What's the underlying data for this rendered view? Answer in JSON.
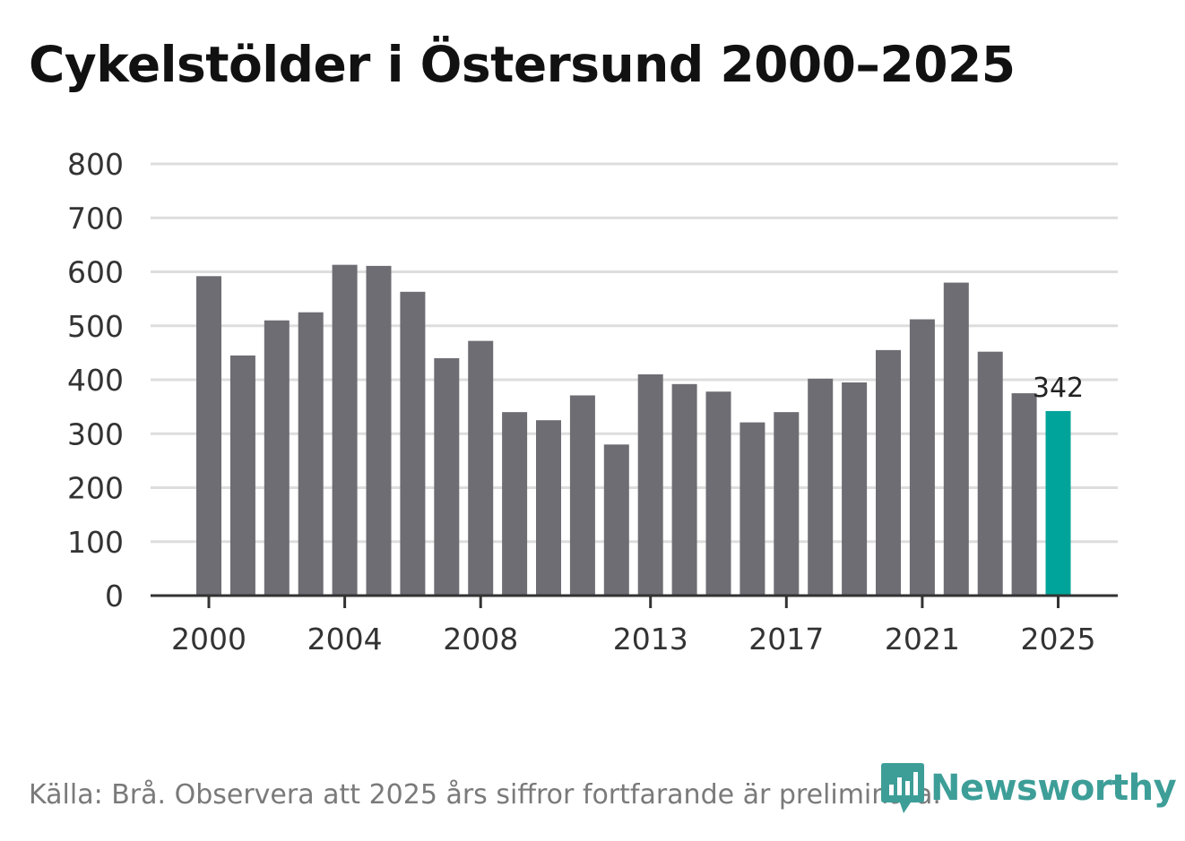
{
  "title": "Cykelstölder i Östersund 2000–2025",
  "source": "Källa: Brå. Observera att 2025 års siffror fortfarande är preliminära.",
  "brand": {
    "name": "Newsworthy",
    "icon": "newsworthy-logo-icon",
    "color": "#3d9e98"
  },
  "colors": {
    "bar": "#6e6d73",
    "highlight": "#00a49a",
    "grid": "#dddddd",
    "axis": "#333333"
  },
  "chart_data": {
    "type": "bar",
    "title": "Cykelstölder i Östersund 2000–2025",
    "xlabel": "",
    "ylabel": "",
    "ylim": [
      0,
      800
    ],
    "yticks": [
      "0",
      "100",
      "200",
      "300",
      "400",
      "500",
      "600",
      "700",
      "800"
    ],
    "xticks": [
      "2000",
      "2004",
      "2008",
      "2013",
      "2017",
      "2021",
      "2025"
    ],
    "categories": [
      "2000",
      "2001",
      "2002",
      "2003",
      "2004",
      "2005",
      "2006",
      "2007",
      "2008",
      "2009",
      "2010",
      "2011",
      "2012",
      "2013",
      "2014",
      "2015",
      "2016",
      "2017",
      "2018",
      "2019",
      "2020",
      "2021",
      "2022",
      "2023",
      "2024",
      "2025"
    ],
    "values": [
      592,
      445,
      510,
      525,
      613,
      611,
      563,
      440,
      472,
      340,
      325,
      371,
      280,
      410,
      392,
      378,
      321,
      340,
      402,
      395,
      455,
      512,
      580,
      452,
      375,
      342
    ],
    "highlight": {
      "category": "2025",
      "label": "342"
    },
    "grid": true
  }
}
